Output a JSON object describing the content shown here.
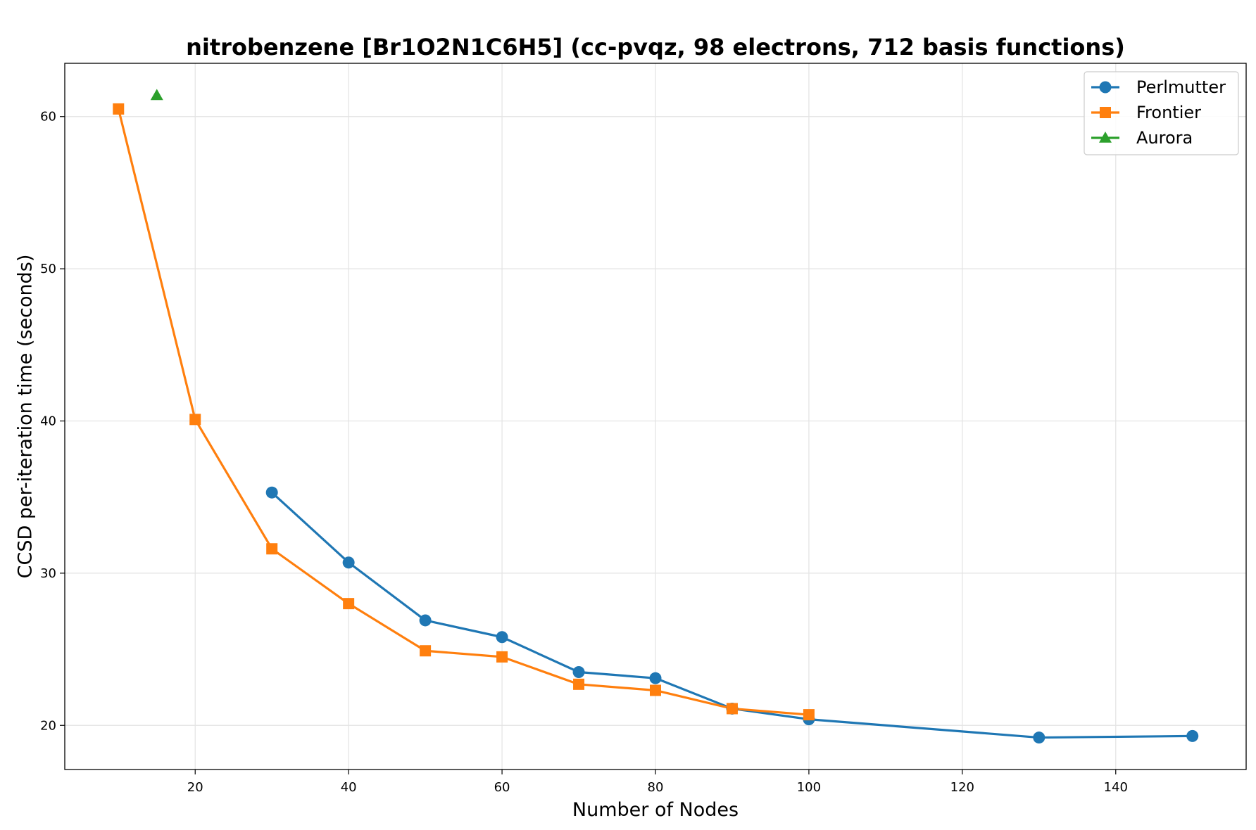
{
  "chart_data": {
    "type": "line",
    "title": "nitrobenzene [Br1O2N1C6H5] (cc-pvqz, 98 electrons, 712 basis functions)",
    "xlabel": "Number of Nodes",
    "ylabel": "CCSD per-iteration time (seconds)",
    "xlim": [
      3,
      157
    ],
    "ylim": [
      17.1,
      63.5
    ],
    "xticks": [
      20,
      40,
      60,
      80,
      100,
      120,
      140
    ],
    "yticks": [
      20,
      30,
      40,
      50,
      60
    ],
    "grid": true,
    "legend_position": "top-right",
    "series": [
      {
        "name": "Perlmutter",
        "color": "#1f77b4",
        "marker": "circle",
        "x": [
          30,
          40,
          50,
          60,
          70,
          80,
          90,
          100,
          130,
          150
        ],
        "y": [
          35.3,
          30.7,
          26.9,
          25.8,
          23.5,
          23.1,
          21.1,
          20.4,
          19.2,
          19.3
        ]
      },
      {
        "name": "Frontier",
        "color": "#ff7f0e",
        "marker": "square",
        "x": [
          10,
          20,
          30,
          40,
          50,
          60,
          70,
          80,
          90,
          100
        ],
        "y": [
          60.5,
          40.1,
          31.6,
          28.0,
          24.9,
          24.5,
          22.7,
          22.3,
          21.1,
          20.7
        ]
      },
      {
        "name": "Aurora",
        "color": "#2ca02c",
        "marker": "triangle",
        "x": [
          15
        ],
        "y": [
          61.4
        ]
      }
    ]
  }
}
